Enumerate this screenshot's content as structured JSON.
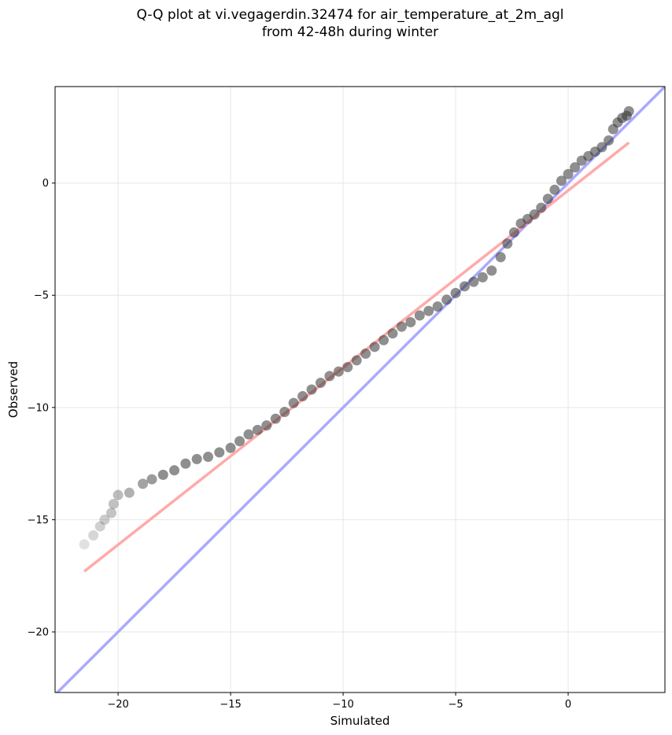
{
  "chart_data": {
    "type": "scatter",
    "title_line1": "Q-Q plot at vi.vegagerdin.32474 for air_temperature_at_2m_agl",
    "title_line2": "from 42-48h during winter",
    "xlabel": "Simulated",
    "ylabel": "Observed",
    "xlim": [
      -22.8,
      4.3
    ],
    "ylim": [
      -22.7,
      4.3
    ],
    "xticks": [
      -20,
      -15,
      -10,
      -5,
      0
    ],
    "yticks": [
      0,
      -5,
      -10,
      -15,
      -20
    ],
    "xtick_labels": [
      "−20",
      "−15",
      "−10",
      "−5",
      "0"
    ],
    "ytick_labels": [
      "0",
      "−5",
      "−10",
      "−15",
      "−20"
    ],
    "grid": true,
    "colors": {
      "points": "#333333",
      "identity_line": "#aaaaff",
      "fit_line": "#ffaaaa"
    },
    "identity_line": {
      "from": [
        -22.8,
        -22.8
      ],
      "to": [
        4.3,
        4.3
      ]
    },
    "fit_line": {
      "from": [
        -21.5,
        -17.3
      ],
      "to": [
        2.7,
        1.8
      ]
    },
    "points": [
      [
        -21.5,
        -16.1
      ],
      [
        -21.1,
        -15.7
      ],
      [
        -20.8,
        -15.3
      ],
      [
        -20.6,
        -15.0
      ],
      [
        -20.3,
        -14.7
      ],
      [
        -20.2,
        -14.3
      ],
      [
        -20.0,
        -13.9
      ],
      [
        -19.5,
        -13.8
      ],
      [
        -18.9,
        -13.4
      ],
      [
        -18.5,
        -13.2
      ],
      [
        -18.0,
        -13.0
      ],
      [
        -17.5,
        -12.8
      ],
      [
        -17.0,
        -12.5
      ],
      [
        -16.5,
        -12.3
      ],
      [
        -16.0,
        -12.2
      ],
      [
        -15.5,
        -12.0
      ],
      [
        -15.0,
        -11.8
      ],
      [
        -14.6,
        -11.5
      ],
      [
        -14.2,
        -11.2
      ],
      [
        -13.8,
        -11.0
      ],
      [
        -13.4,
        -10.8
      ],
      [
        -13.0,
        -10.5
      ],
      [
        -12.6,
        -10.2
      ],
      [
        -12.2,
        -9.8
      ],
      [
        -11.8,
        -9.5
      ],
      [
        -11.4,
        -9.2
      ],
      [
        -11.0,
        -8.9
      ],
      [
        -10.6,
        -8.6
      ],
      [
        -10.2,
        -8.4
      ],
      [
        -9.8,
        -8.2
      ],
      [
        -9.4,
        -7.9
      ],
      [
        -9.0,
        -7.6
      ],
      [
        -8.6,
        -7.3
      ],
      [
        -8.2,
        -7.0
      ],
      [
        -7.8,
        -6.7
      ],
      [
        -7.4,
        -6.4
      ],
      [
        -7.0,
        -6.2
      ],
      [
        -6.6,
        -5.9
      ],
      [
        -6.2,
        -5.7
      ],
      [
        -5.8,
        -5.5
      ],
      [
        -5.4,
        -5.2
      ],
      [
        -5.0,
        -4.9
      ],
      [
        -4.6,
        -4.6
      ],
      [
        -4.2,
        -4.4
      ],
      [
        -3.8,
        -4.2
      ],
      [
        -3.4,
        -3.9
      ],
      [
        -3.0,
        -3.3
      ],
      [
        -2.7,
        -2.7
      ],
      [
        -2.4,
        -2.2
      ],
      [
        -2.1,
        -1.8
      ],
      [
        -1.8,
        -1.6
      ],
      [
        -1.5,
        -1.4
      ],
      [
        -1.2,
        -1.1
      ],
      [
        -0.9,
        -0.7
      ],
      [
        -0.6,
        -0.3
      ],
      [
        -0.3,
        0.1
      ],
      [
        0.0,
        0.4
      ],
      [
        0.3,
        0.7
      ],
      [
        0.6,
        1.0
      ],
      [
        0.9,
        1.2
      ],
      [
        1.2,
        1.4
      ],
      [
        1.5,
        1.6
      ],
      [
        1.8,
        1.9
      ],
      [
        2.0,
        2.4
      ],
      [
        2.2,
        2.7
      ],
      [
        2.4,
        2.9
      ],
      [
        2.6,
        3.0
      ],
      [
        2.7,
        3.2
      ]
    ]
  }
}
